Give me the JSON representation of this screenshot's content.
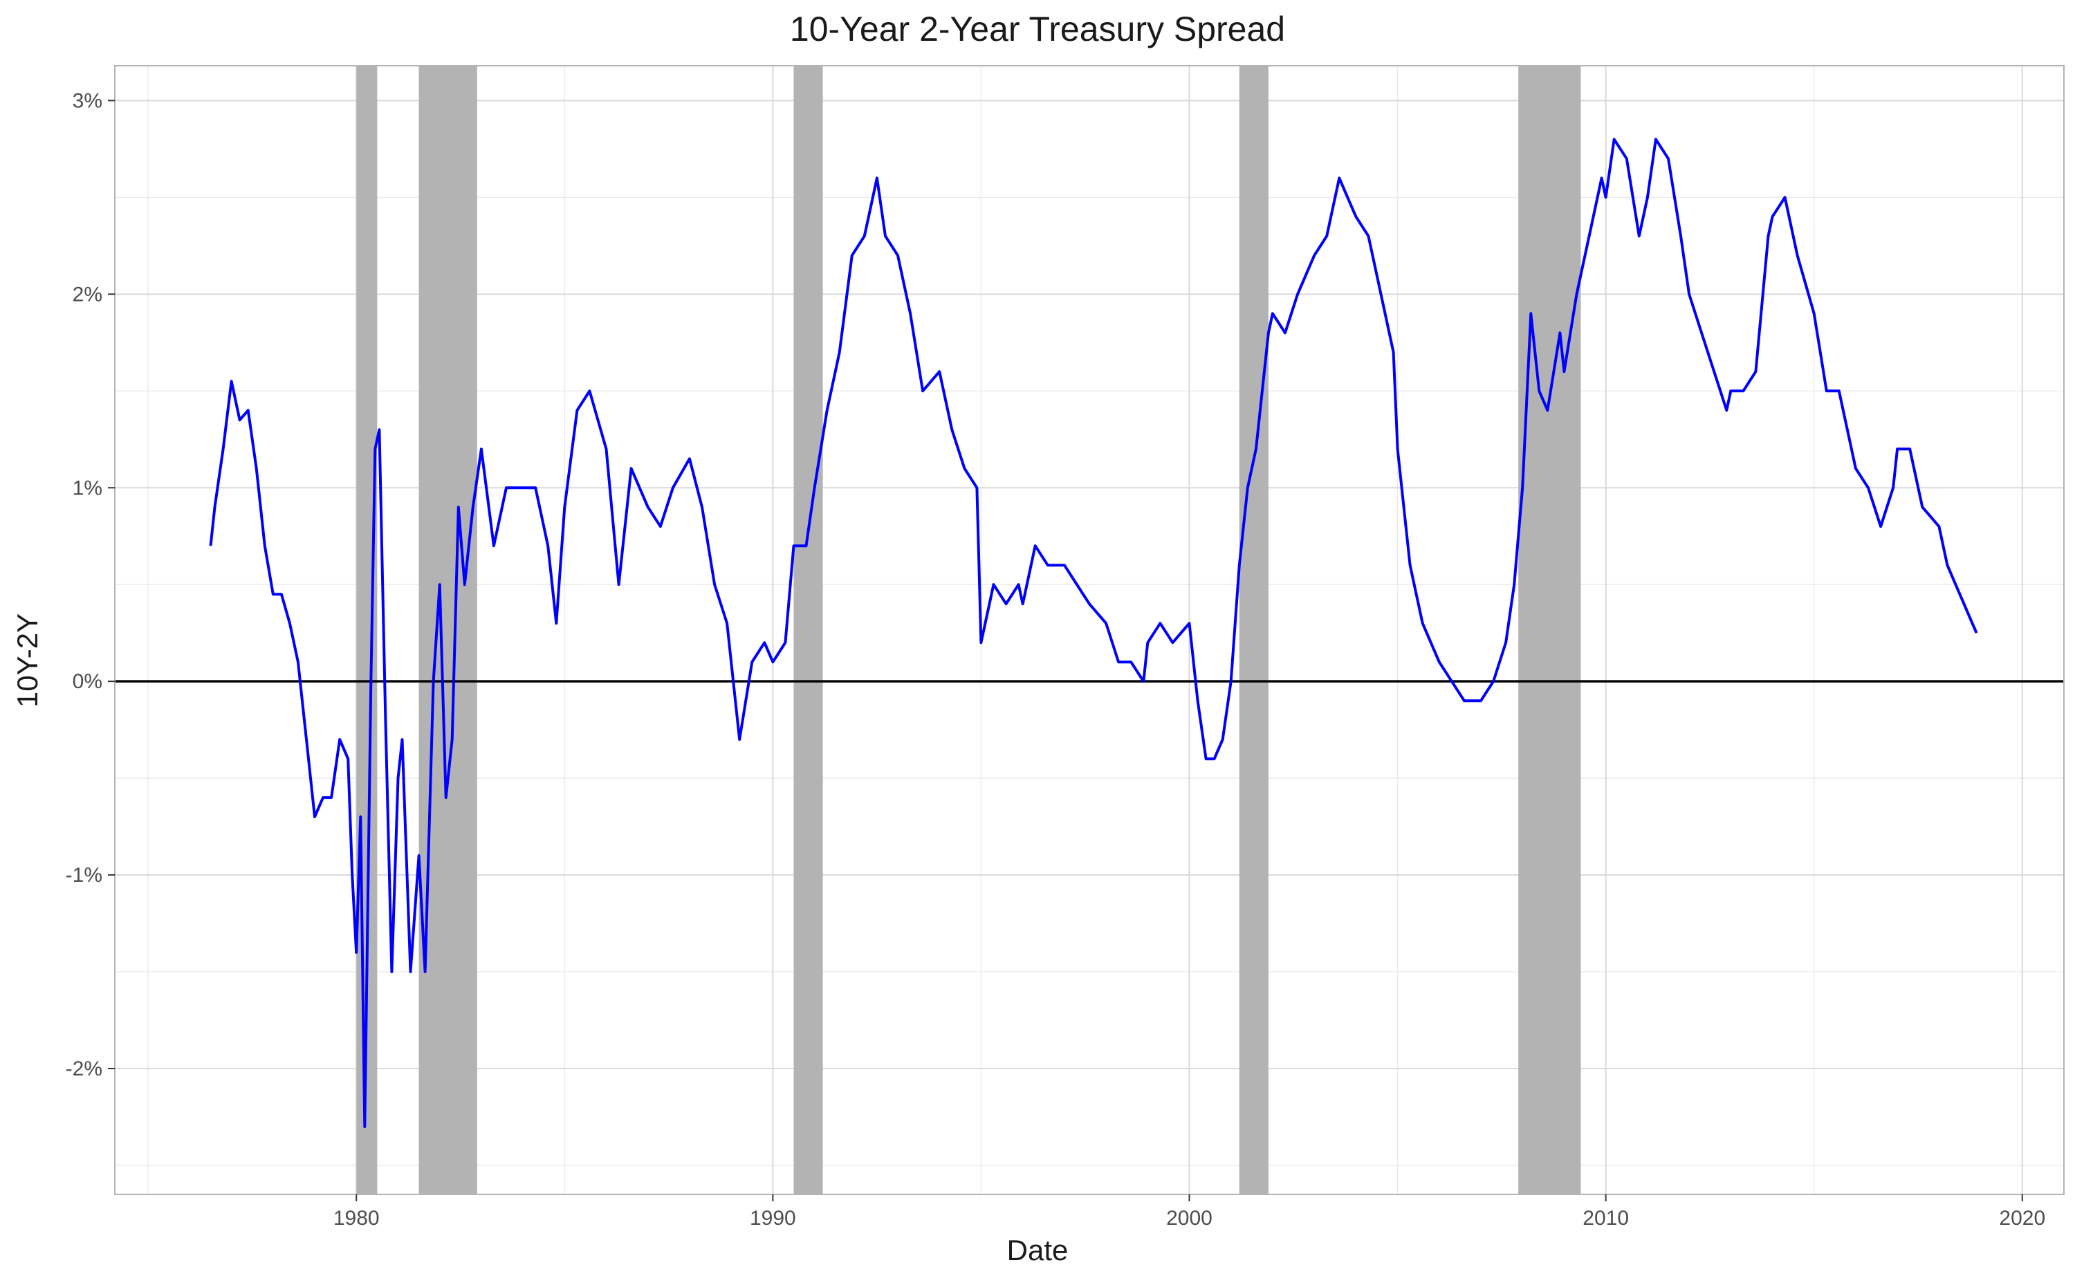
{
  "chart_data": {
    "type": "line",
    "title": "10-Year 2-Year Treasury Spread",
    "xlabel": "Date",
    "ylabel": "10Y-2Y",
    "xlim": [
      1974.2,
      2021.0
    ],
    "ylim": [
      -2.65,
      3.18
    ],
    "x_ticks": [
      1980,
      1990,
      2000,
      2010,
      2020
    ],
    "y_ticks": [
      -2,
      -1,
      0,
      1,
      2,
      3
    ],
    "y_tick_labels": [
      "-2%",
      "-1%",
      "0%",
      "1%",
      "2%",
      "3%"
    ],
    "grid": true,
    "legend": "none",
    "reference_line_y": 0,
    "recessions": [
      [
        1980.0,
        1980.5
      ],
      [
        1981.5,
        1982.9
      ],
      [
        1990.5,
        1991.2
      ],
      [
        2001.2,
        2001.9
      ],
      [
        2007.9,
        2009.4
      ]
    ],
    "series": [
      {
        "color": "#0000ff",
        "x": [
          1976.5,
          1976.6,
          1976.8,
          1977.0,
          1977.2,
          1977.4,
          1977.6,
          1977.8,
          1978.0,
          1978.2,
          1978.4,
          1978.6,
          1978.8,
          1979.0,
          1979.2,
          1979.4,
          1979.6,
          1979.8,
          1979.9,
          1980.0,
          1980.1,
          1980.2,
          1980.35,
          1980.45,
          1980.55,
          1980.7,
          1980.85,
          1981.0,
          1981.1,
          1981.3,
          1981.5,
          1981.65,
          1981.85,
          1982.0,
          1982.15,
          1982.3,
          1982.45,
          1982.6,
          1982.8,
          1983.0,
          1983.3,
          1983.6,
          1984.0,
          1984.3,
          1984.6,
          1984.8,
          1985.0,
          1985.3,
          1985.6,
          1986.0,
          1986.3,
          1986.6,
          1987.0,
          1987.3,
          1987.6,
          1988.0,
          1988.3,
          1988.6,
          1988.9,
          1989.2,
          1989.5,
          1989.8,
          1990.0,
          1990.3,
          1990.5,
          1990.8,
          1991.0,
          1991.3,
          1991.6,
          1991.9,
          1992.2,
          1992.5,
          1992.7,
          1993.0,
          1993.3,
          1993.6,
          1994.0,
          1994.3,
          1994.6,
          1994.9,
          1995.0,
          1995.3,
          1995.6,
          1995.9,
          1996.0,
          1996.3,
          1996.6,
          1997.0,
          1997.3,
          1997.6,
          1998.0,
          1998.3,
          1998.6,
          1998.9,
          1999.0,
          1999.3,
          1999.6,
          2000.0,
          2000.2,
          2000.4,
          2000.6,
          2000.8,
          2001.0,
          2001.2,
          2001.4,
          2001.6,
          2001.9,
          2002.0,
          2002.3,
          2002.6,
          2003.0,
          2003.3,
          2003.6,
          2003.8,
          2004.0,
          2004.3,
          2004.6,
          2004.9,
          2005.0,
          2005.3,
          2005.6,
          2006.0,
          2006.3,
          2006.6,
          2007.0,
          2007.3,
          2007.6,
          2007.8,
          2008.0,
          2008.2,
          2008.4,
          2008.6,
          2008.9,
          2009.0,
          2009.3,
          2009.6,
          2009.9,
          2010.0,
          2010.2,
          2010.5,
          2010.8,
          2011.0,
          2011.2,
          2011.5,
          2011.8,
          2012.0,
          2012.3,
          2012.6,
          2012.9,
          2013.0,
          2013.3,
          2013.6,
          2013.9,
          2014.0,
          2014.3,
          2014.6,
          2015.0,
          2015.3,
          2015.6,
          2016.0,
          2016.3,
          2016.6,
          2016.9,
          2017.0,
          2017.3,
          2017.6,
          2018.0,
          2018.2,
          2018.4,
          2018.6,
          2018.8,
          2018.9
        ],
        "y": [
          0.7,
          0.9,
          1.2,
          1.55,
          1.35,
          1.4,
          1.1,
          0.7,
          0.45,
          0.45,
          0.3,
          0.1,
          -0.3,
          -0.7,
          -0.6,
          -0.6,
          -0.3,
          -0.4,
          -1.0,
          -1.4,
          -0.7,
          -2.3,
          0.0,
          1.2,
          1.3,
          -0.2,
          -1.5,
          -0.5,
          -0.3,
          -1.5,
          -0.9,
          -1.5,
          0.0,
          0.5,
          -0.6,
          -0.3,
          0.9,
          0.5,
          0.9,
          1.2,
          0.7,
          1.0,
          1.0,
          1.0,
          0.7,
          0.3,
          0.9,
          1.4,
          1.5,
          1.2,
          0.5,
          1.1,
          0.9,
          0.8,
          1.0,
          1.15,
          0.9,
          0.5,
          0.3,
          -0.3,
          0.1,
          0.2,
          0.1,
          0.2,
          0.7,
          0.7,
          1.0,
          1.4,
          1.7,
          2.2,
          2.3,
          2.6,
          2.3,
          2.2,
          1.9,
          1.5,
          1.6,
          1.3,
          1.1,
          1.0,
          0.2,
          0.5,
          0.4,
          0.5,
          0.4,
          0.7,
          0.6,
          0.6,
          0.5,
          0.4,
          0.3,
          0.1,
          0.1,
          0.0,
          0.2,
          0.3,
          0.2,
          0.3,
          -0.1,
          -0.4,
          -0.4,
          -0.3,
          0.0,
          0.6,
          1.0,
          1.2,
          1.8,
          1.9,
          1.8,
          2.0,
          2.2,
          2.3,
          2.6,
          2.5,
          2.4,
          2.3,
          2.0,
          1.7,
          1.2,
          0.6,
          0.3,
          0.1,
          0.0,
          -0.1,
          -0.1,
          0.0,
          0.2,
          0.5,
          1.0,
          1.9,
          1.5,
          1.4,
          1.8,
          1.6,
          2.0,
          2.3,
          2.6,
          2.5,
          2.8,
          2.7,
          2.3,
          2.5,
          2.8,
          2.7,
          2.3,
          2.0,
          1.8,
          1.6,
          1.4,
          1.5,
          1.5,
          1.6,
          2.3,
          2.4,
          2.5,
          2.2,
          1.9,
          1.5,
          1.5,
          1.1,
          1.0,
          0.8,
          1.0,
          1.2,
          1.2,
          0.9,
          0.8,
          0.6,
          0.5,
          0.4,
          0.3,
          0.25
        ]
      }
    ]
  }
}
